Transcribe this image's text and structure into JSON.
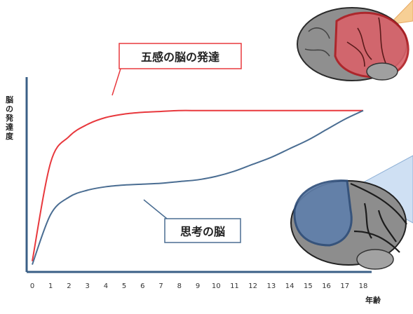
{
  "chart_data": {
    "type": "line",
    "ylabel": "脳の発達度",
    "xlabel": "年齢",
    "x": [
      0,
      1,
      2,
      3,
      4,
      5,
      6,
      7,
      8,
      9,
      10,
      11,
      12,
      13,
      14,
      15,
      16,
      17,
      18
    ],
    "x_tick_labels": [
      "0",
      "1",
      "2",
      "3",
      "4",
      "5",
      "6",
      "7",
      "8",
      "9",
      "10",
      "11",
      "12",
      "13",
      "14",
      "15",
      "16",
      "17",
      "18"
    ],
    "series": [
      {
        "name": "五感の脳の発達",
        "color": "#e8383d",
        "values": [
          0.05,
          0.62,
          0.77,
          0.84,
          0.88,
          0.9,
          0.91,
          0.915,
          0.92,
          0.92,
          0.92,
          0.92,
          0.92,
          0.92,
          0.92,
          0.92,
          0.92,
          0.92,
          0.92
        ]
      },
      {
        "name": "思考の脳",
        "color": "#4a6d92",
        "values": [
          0.03,
          0.32,
          0.42,
          0.46,
          0.48,
          0.49,
          0.495,
          0.5,
          0.51,
          0.52,
          0.54,
          0.57,
          0.61,
          0.65,
          0.7,
          0.75,
          0.81,
          0.87,
          0.92
        ]
      }
    ],
    "ylim": [
      0,
      1
    ],
    "grid": false
  },
  "colors": {
    "axis": "#3a5f86",
    "sensory": "#e8383d",
    "thinking": "#4a6d92",
    "callout_orange": "#f5c88a",
    "callout_blue": "#c7dcf1"
  }
}
